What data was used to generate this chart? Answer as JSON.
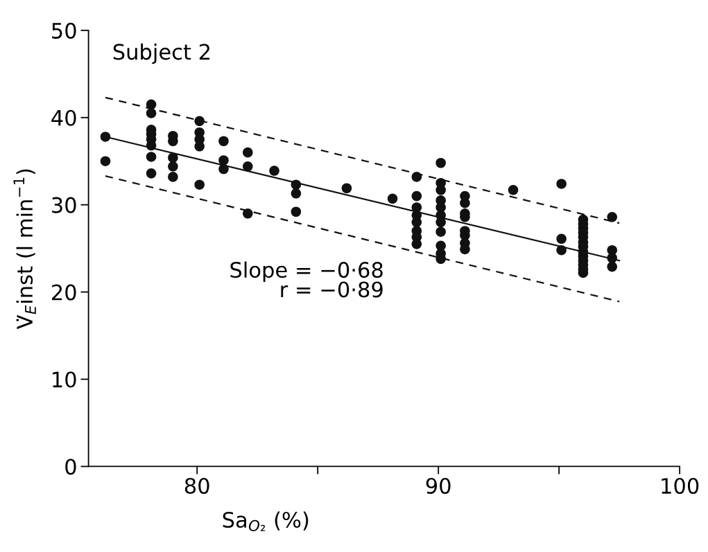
{
  "chart_data": {
    "type": "scatter",
    "title": "Subject 2",
    "xlabel": "Sa$_{O₂}$ (%)",
    "ylabel": "V̇$_{E}$inst (l min$^{−1}$)",
    "xlim": [
      75.5,
      100
    ],
    "xticks": [
      80,
      {
        "value": 85,
        "label": null
      },
      90,
      {
        "value": 95,
        "label": null
      },
      100
    ],
    "ylim": [
      0,
      50
    ],
    "yticks": [
      0,
      10,
      20,
      30,
      40,
      50
    ],
    "grid": false,
    "legend": false,
    "annotations": [
      "Slope = −0·68",
      "r = −0·89"
    ],
    "series": [
      {
        "color": "#111111",
        "marker": "circle",
        "x": [
          76.2,
          76.2,
          78.1,
          78.1,
          78.1,
          78.1,
          78.1,
          78.1,
          78.1,
          78.1,
          79.0,
          79.0,
          79.0,
          79.0,
          79.0,
          80.1,
          80.1,
          80.1,
          80.1,
          80.1,
          81.1,
          81.1,
          81.1,
          82.1,
          82.1,
          82.1,
          83.2,
          84.1,
          84.1,
          84.1,
          86.2,
          88.1,
          89.1,
          89.1,
          89.1,
          89.1,
          89.1,
          89.1,
          89.1,
          89.1,
          90.1,
          90.1,
          90.1,
          90.1,
          90.1,
          90.1,
          90.1,
          90.1,
          90.1,
          90.1,
          90.1,
          91.1,
          91.1,
          91.1,
          91.1,
          91.1,
          91.1,
          91.1,
          91.1,
          93.1,
          95.1,
          95.1,
          95.1,
          96.0,
          96.0,
          96.0,
          96.0,
          96.0,
          96.0,
          96.0,
          96.0,
          96.0,
          96.0,
          96.0,
          96.0,
          96.0,
          97.2,
          97.2,
          97.2,
          97.2
        ],
        "values": [
          37.8,
          35.0,
          41.5,
          40.5,
          38.6,
          38.1,
          37.5,
          36.8,
          35.5,
          33.6,
          37.9,
          37.3,
          35.4,
          34.4,
          33.2,
          39.6,
          38.3,
          37.5,
          36.7,
          32.3,
          37.3,
          35.1,
          34.1,
          36.0,
          34.4,
          29.0,
          33.9,
          32.3,
          31.3,
          29.2,
          31.9,
          30.7,
          33.2,
          31.0,
          29.7,
          28.8,
          28.0,
          27.0,
          26.3,
          25.5,
          34.8,
          32.5,
          31.7,
          30.5,
          29.7,
          28.8,
          28.0,
          26.9,
          25.3,
          24.4,
          23.8,
          31.0,
          30.2,
          29.0,
          28.6,
          27.0,
          26.5,
          25.6,
          24.9,
          31.7,
          32.4,
          26.1,
          24.8,
          28.3,
          27.8,
          27.3,
          26.8,
          26.3,
          25.7,
          25.2,
          24.6,
          24.1,
          23.6,
          23.1,
          22.6,
          22.2,
          28.6,
          24.8,
          23.9,
          22.9
        ]
      },
      {
        "type": "line",
        "color": "#111111",
        "line_style": "solid",
        "marker": "none",
        "x": [
          76.2,
          97.5
        ],
        "values": [
          37.8,
          23.6
        ]
      },
      {
        "type": "line",
        "color": "#111111",
        "line_style": "dashed",
        "marker": "none",
        "x": [
          76.2,
          97.5
        ],
        "values": [
          42.3,
          27.9
        ]
      },
      {
        "type": "line",
        "color": "#111111",
        "line_style": "dashed",
        "marker": "none",
        "x": [
          76.2,
          97.5
        ],
        "values": [
          33.3,
          18.9
        ]
      }
    ]
  }
}
